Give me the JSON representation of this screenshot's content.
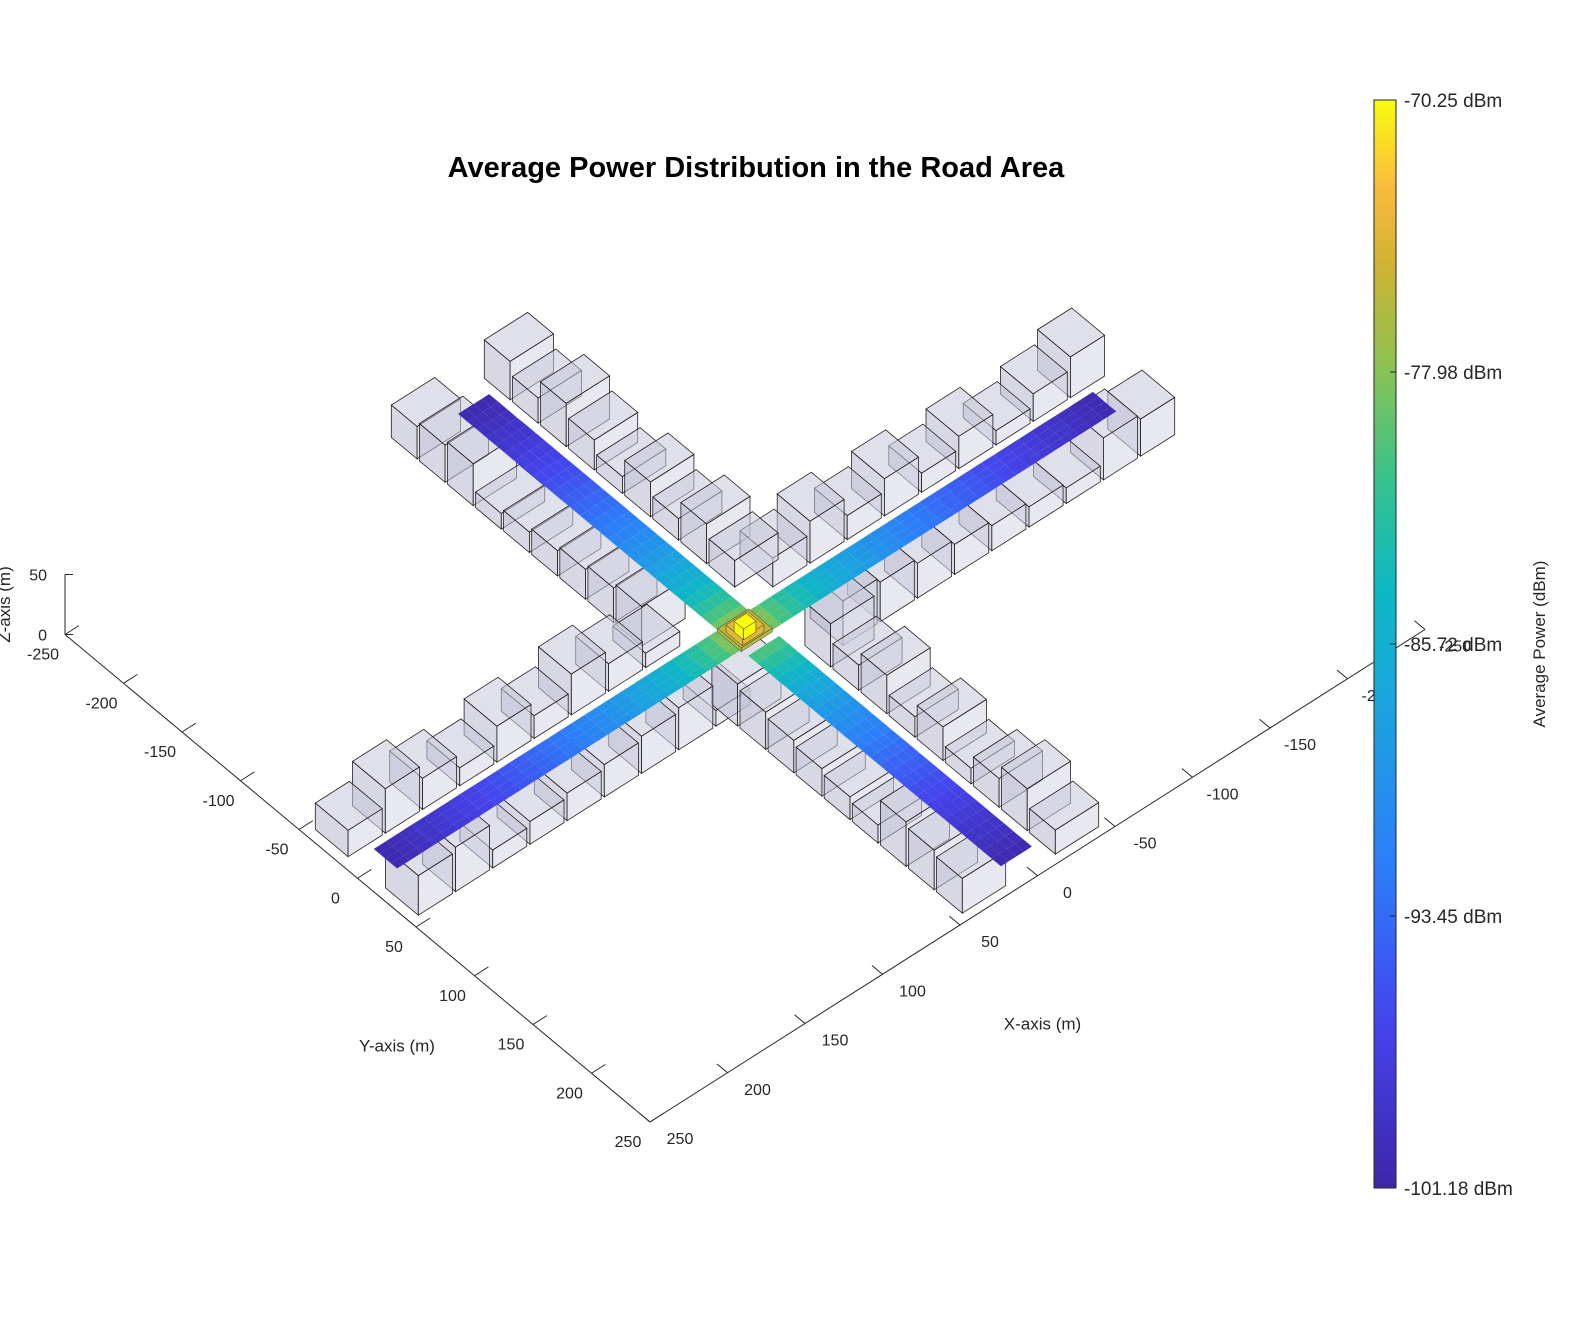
{
  "chart_data": {
    "type": "3d-surface",
    "title": "Average Power Distribution in the Road Area",
    "xlabel": "X-axis (m)",
    "ylabel": "Y-axis (m)",
    "zlabel": "Z-axis (m)",
    "x_ticks": [
      "0",
      "50",
      "100",
      "150",
      "200",
      "250"
    ],
    "x_ticks_neg": [
      "-50",
      "-100",
      "-150",
      "-200",
      "-250"
    ],
    "y_ticks": [
      "-250",
      "-200",
      "-150",
      "-100",
      "-50",
      "0",
      "50",
      "100",
      "150",
      "200",
      "250"
    ],
    "z_ticks": [
      "0",
      "50"
    ],
    "xlim": [
      -250,
      250
    ],
    "ylim": [
      -250,
      250
    ],
    "zlim": [
      0,
      50
    ],
    "colorbar": {
      "label": "Average Power (dBm)",
      "ticks": [
        "-70.25 dBm",
        "-77.98 dBm",
        "-85.72 dBm",
        "-93.45 dBm",
        "-101.18 dBm"
      ],
      "range": [
        -101.18,
        -70.25
      ],
      "colormap": "parula"
    },
    "transmitter_location": [
      0,
      0
    ],
    "peak_power_dbm": -70.25,
    "min_power_dbm": -101.18
  }
}
